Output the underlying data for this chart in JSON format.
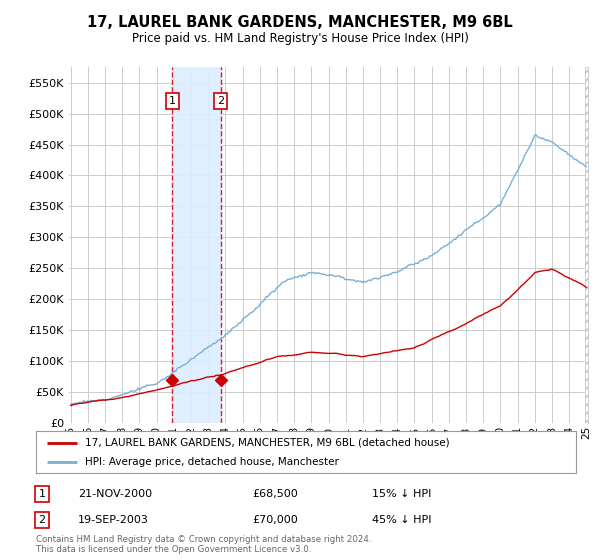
{
  "title": "17, LAUREL BANK GARDENS, MANCHESTER, M9 6BL",
  "subtitle": "Price paid vs. HM Land Registry's House Price Index (HPI)",
  "ytick_vals": [
    0,
    50000,
    100000,
    150000,
    200000,
    250000,
    300000,
    350000,
    400000,
    450000,
    500000,
    550000
  ],
  "ylim": [
    0,
    575000
  ],
  "x_start_year": 1995,
  "x_end_year": 2025,
  "sale1_year": 2000.9,
  "sale1_price": 68500,
  "sale2_year": 2003.72,
  "sale2_price": 70000,
  "sale1_label": "21-NOV-2000",
  "sale2_label": "19-SEP-2003",
  "sale1_pct": "15% ↓ HPI",
  "sale2_pct": "45% ↓ HPI",
  "legend_line1": "17, LAUREL BANK GARDENS, MANCHESTER, M9 6BL (detached house)",
  "legend_line2": "HPI: Average price, detached house, Manchester",
  "footer": "Contains HM Land Registry data © Crown copyright and database right 2024.\nThis data is licensed under the Open Government Licence v3.0.",
  "line_color_red": "#cc0000",
  "line_color_blue": "#7bafd4",
  "shade_color": "#ddeeff",
  "background_color": "#ffffff",
  "grid_color": "#cccccc"
}
